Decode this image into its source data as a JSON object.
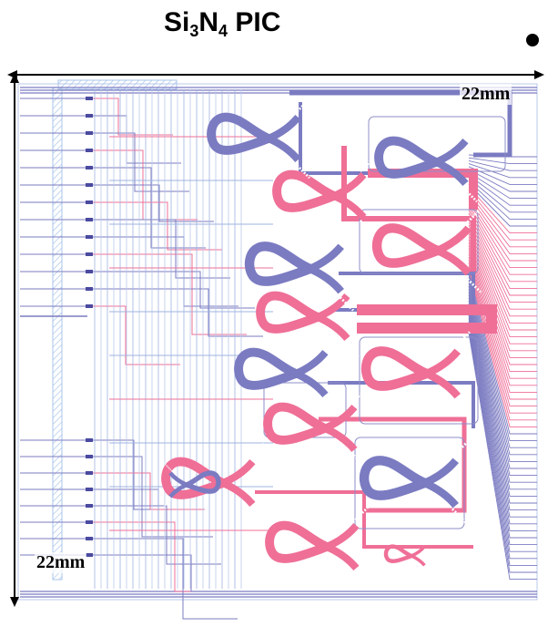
{
  "title": {
    "prefix": "Si",
    "sub1": "3",
    "mid": "N",
    "sub2": "4",
    "suffix": " PIC"
  },
  "dimensions": {
    "width_label": "22mm",
    "height_label": "22mm"
  },
  "colors": {
    "waveguide_blue": "#7b7bc2",
    "waveguide_pink": "#ef6f97",
    "trench_blue": "#a9c6ea",
    "arrow": "#000000"
  },
  "figure": {
    "blue_resonator_count": 6,
    "pink_resonator_count": 8,
    "fanout_line_count": 62
  }
}
